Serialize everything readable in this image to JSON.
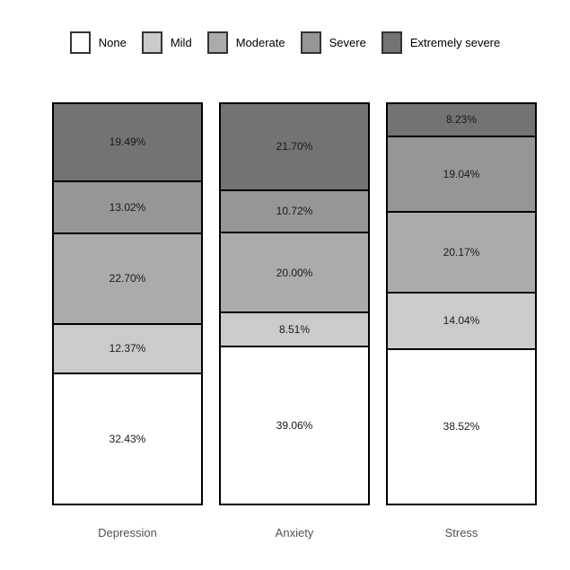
{
  "chart_data": {
    "type": "bar",
    "stacked": true,
    "orientation": "vertical",
    "title": "",
    "xlabel": "",
    "ylabel": "",
    "ylim": [
      0,
      100
    ],
    "grid": false,
    "legend_position": "top",
    "categories": [
      "Depression",
      "Anxiety",
      "Stress"
    ],
    "series": [
      {
        "name": "None",
        "color": "#ffffff",
        "values": [
          32.43,
          39.06,
          38.52
        ]
      },
      {
        "name": "Mild",
        "color": "#cbcbcb",
        "values": [
          12.37,
          8.51,
          14.04
        ]
      },
      {
        "name": "Moderate",
        "color": "#ababab",
        "values": [
          22.7,
          20.0,
          20.17
        ]
      },
      {
        "name": "Severe",
        "color": "#969696",
        "values": [
          13.02,
          10.72,
          19.04
        ]
      },
      {
        "name": "Extremely severe",
        "color": "#737373",
        "values": [
          19.49,
          21.7,
          8.23
        ]
      }
    ],
    "value_labels": [
      [
        "32.43%",
        "39.06%",
        "38.52%"
      ],
      [
        "12.37%",
        "8.51%",
        "14.04%"
      ],
      [
        "22.70%",
        "20.00%",
        "20.17%"
      ],
      [
        "13.02%",
        "10.72%",
        "19.04%"
      ],
      [
        "19.49%",
        "21.70%",
        "8.23%"
      ]
    ],
    "stack_order_top_to_bottom": [
      "Extremely severe",
      "Severe",
      "Moderate",
      "Mild",
      "None"
    ]
  },
  "legend": {
    "items": [
      "None",
      "Mild",
      "Moderate",
      "Severe",
      "Extremely severe"
    ]
  },
  "style": {
    "background": "#ffffff",
    "bar_border_color": "#000000",
    "swatch_border_color": "#333333",
    "value_label_color": "#1a1a1a",
    "category_label_color": "#525252"
  }
}
